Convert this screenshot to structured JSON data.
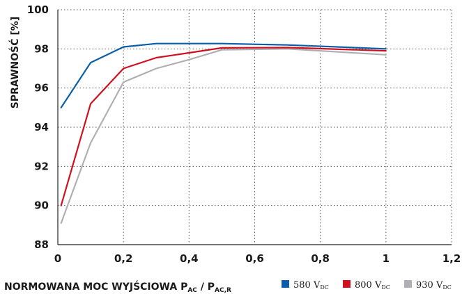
{
  "chart_data": {
    "type": "line",
    "ylabel": "SPRAWNOŚĆ [%]",
    "xlabel": {
      "main": "NORMOWANA MOC WYJŚCIOWA P",
      "sub1": "AC",
      "slash": " / P",
      "sub2": "AC,R"
    },
    "xlim": [
      0,
      1.2
    ],
    "ylim": [
      88,
      100
    ],
    "xticks": [
      0,
      0.2,
      0.4,
      0.6,
      0.8,
      1,
      1.2
    ],
    "xtick_labels": [
      "0",
      "0,2",
      "0,4",
      "0,6",
      "0,8",
      "1",
      "1,2"
    ],
    "yticks": [
      88,
      90,
      92,
      94,
      96,
      98,
      100
    ],
    "ytick_labels": [
      "88",
      "90",
      "92",
      "94",
      "96",
      "98",
      "100"
    ],
    "grid": true,
    "legend_position": "bottom-right",
    "series": [
      {
        "name": "580 V",
        "sub": "DC",
        "color": "#0a5ea8",
        "x": [
          0.01,
          0.1,
          0.2,
          0.3,
          0.4,
          0.5,
          0.7,
          1.0
        ],
        "y": [
          95.0,
          97.3,
          98.1,
          98.27,
          98.27,
          98.27,
          98.2,
          98.0
        ]
      },
      {
        "name": "800 V",
        "sub": "DC",
        "color": "#d0101e",
        "x": [
          0.01,
          0.1,
          0.2,
          0.3,
          0.4,
          0.5,
          0.7,
          1.0
        ],
        "y": [
          90.0,
          95.2,
          97.0,
          97.55,
          97.8,
          98.05,
          98.07,
          97.9
        ]
      },
      {
        "name": "930 V",
        "sub": "DC",
        "color": "#aeb0b3",
        "x": [
          0.01,
          0.1,
          0.2,
          0.3,
          0.4,
          0.5,
          0.7,
          1.0
        ],
        "y": [
          89.1,
          93.2,
          96.3,
          97.0,
          97.45,
          97.95,
          98.0,
          97.7
        ]
      }
    ]
  }
}
